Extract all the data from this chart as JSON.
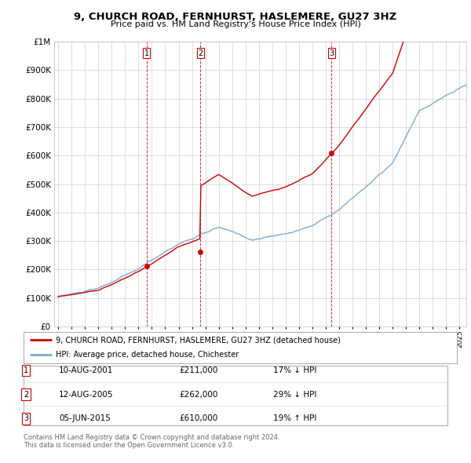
{
  "title": "9, CHURCH ROAD, FERNHURST, HASLEMERE, GU27 3HZ",
  "subtitle": "Price paid vs. HM Land Registry's House Price Index (HPI)",
  "legend_line1": "9, CHURCH ROAD, FERNHURST, HASLEMERE, GU27 3HZ (detached house)",
  "legend_line2": "HPI: Average price, detached house, Chichester",
  "footer1": "Contains HM Land Registry data © Crown copyright and database right 2024.",
  "footer2": "This data is licensed under the Open Government Licence v3.0.",
  "transactions": [
    {
      "num": 1,
      "date": "10-AUG-2001",
      "price": "£211,000",
      "rel": "17% ↓ HPI",
      "year": 2001.62
    },
    {
      "num": 2,
      "date": "12-AUG-2005",
      "price": "£262,000",
      "rel": "29% ↓ HPI",
      "year": 2005.62
    },
    {
      "num": 3,
      "date": "05-JUN-2015",
      "price": "£610,000",
      "rel": "19% ↑ HPI",
      "year": 2015.43
    }
  ],
  "sale_prices": [
    211000,
    262000,
    610000
  ],
  "sale_years": [
    2001.62,
    2005.62,
    2015.43
  ],
  "red_color": "#cc0000",
  "hpi_color": "#7faacc",
  "ylim": [
    0,
    1000000
  ],
  "xlim_start": 1994.7,
  "xlim_end": 2025.5,
  "background": "#f0f4f8"
}
